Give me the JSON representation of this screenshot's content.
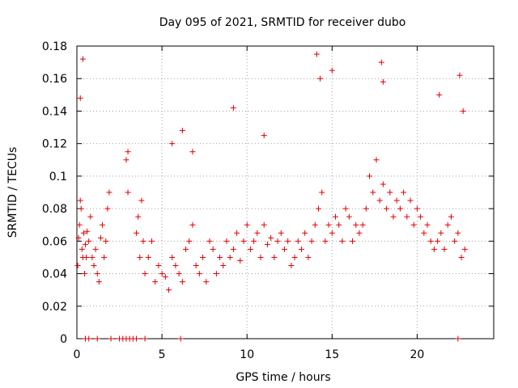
{
  "chart_data": {
    "type": "scatter",
    "title": "Day 095 of 2021, SRMTID for receiver dubo",
    "xlabel": "GPS time / hours",
    "ylabel": "SRMTID / TECUs",
    "xlim": [
      0,
      24.5
    ],
    "ylim": [
      0,
      0.18
    ],
    "xticks": [
      0,
      5,
      10,
      15,
      20
    ],
    "xtick_labels": [
      "0",
      "5",
      "10",
      "15",
      "20"
    ],
    "yticks": [
      0,
      0.02,
      0.04,
      0.06,
      0.08,
      0.1,
      0.12,
      0.14,
      0.16,
      0.18
    ],
    "ytick_labels": [
      "0",
      "0.02",
      "0.04",
      "0.06",
      "0.08",
      "0.1",
      "0.12",
      "0.14",
      "0.16",
      "0.18"
    ],
    "grid": true,
    "series": [
      {
        "name": "SRMTID",
        "marker": "plus",
        "color": "#e00000",
        "x": [
          0.05,
          0.1,
          0.15,
          0.2,
          0.25,
          0.3,
          0.35,
          0.4,
          0.45,
          0.5,
          0.55,
          0.6,
          0.7,
          0.8,
          0.9,
          1.0,
          1.1,
          1.2,
          1.3,
          1.4,
          1.5,
          1.6,
          1.7,
          1.8,
          1.9,
          2.9,
          3.0,
          3.5,
          3.6,
          3.7,
          3.8,
          3.9,
          4.0,
          4.2,
          4.4,
          4.6,
          4.8,
          5.0,
          5.2,
          5.4,
          5.6,
          5.8,
          6.0,
          6.2,
          6.4,
          6.6,
          6.8,
          7.0,
          7.2,
          7.4,
          7.6,
          7.8,
          8.0,
          8.2,
          8.4,
          8.6,
          8.8,
          9.0,
          9.2,
          9.4,
          9.6,
          9.8,
          10.0,
          10.2,
          10.4,
          10.6,
          10.8,
          11.0,
          11.2,
          11.4,
          11.6,
          11.8,
          12.0,
          12.2,
          12.4,
          12.6,
          12.8,
          13.0,
          13.2,
          13.4,
          13.6,
          13.8,
          14.0,
          14.2,
          14.4,
          14.6,
          14.8,
          15.0,
          15.2,
          15.4,
          15.6,
          15.8,
          16.0,
          16.2,
          16.4,
          16.6,
          16.8,
          17.0,
          17.2,
          17.4,
          17.6,
          17.8,
          18.0,
          18.2,
          18.4,
          18.6,
          18.8,
          19.0,
          19.2,
          19.4,
          19.6,
          19.8,
          20.0,
          20.2,
          20.4,
          20.6,
          20.8,
          21.0,
          21.2,
          21.4,
          21.6,
          21.8,
          22.0,
          22.2,
          22.4,
          22.6,
          22.8,
          0.2,
          0.35,
          3.0,
          5.6,
          6.2,
          6.8,
          9.2,
          11.0,
          14.1,
          14.3,
          15.0,
          17.9,
          18.0,
          21.3,
          22.5,
          22.7,
          0.5,
          0.7,
          1.2,
          2.0,
          2.5,
          2.7,
          2.9,
          3.1,
          3.3,
          3.5,
          4.0,
          6.1,
          22.4
        ],
        "values": [
          0.045,
          0.062,
          0.07,
          0.085,
          0.08,
          0.055,
          0.05,
          0.065,
          0.04,
          0.058,
          0.05,
          0.066,
          0.06,
          0.075,
          0.05,
          0.045,
          0.055,
          0.04,
          0.035,
          0.062,
          0.07,
          0.05,
          0.06,
          0.08,
          0.09,
          0.11,
          0.09,
          0.065,
          0.075,
          0.05,
          0.085,
          0.06,
          0.04,
          0.05,
          0.06,
          0.035,
          0.045,
          0.04,
          0.038,
          0.03,
          0.05,
          0.045,
          0.04,
          0.035,
          0.055,
          0.06,
          0.07,
          0.045,
          0.04,
          0.05,
          0.035,
          0.06,
          0.055,
          0.04,
          0.05,
          0.045,
          0.06,
          0.05,
          0.055,
          0.065,
          0.048,
          0.06,
          0.07,
          0.055,
          0.06,
          0.065,
          0.05,
          0.07,
          0.058,
          0.062,
          0.05,
          0.06,
          0.065,
          0.055,
          0.06,
          0.045,
          0.05,
          0.06,
          0.055,
          0.065,
          0.05,
          0.06,
          0.07,
          0.08,
          0.09,
          0.06,
          0.07,
          0.065,
          0.075,
          0.07,
          0.06,
          0.08,
          0.075,
          0.06,
          0.07,
          0.065,
          0.07,
          0.08,
          0.1,
          0.09,
          0.11,
          0.085,
          0.095,
          0.08,
          0.09,
          0.075,
          0.085,
          0.08,
          0.09,
          0.075,
          0.085,
          0.07,
          0.08,
          0.075,
          0.065,
          0.07,
          0.06,
          0.055,
          0.06,
          0.065,
          0.055,
          0.07,
          0.075,
          0.06,
          0.065,
          0.05,
          0.055,
          0.148,
          0.172,
          0.115,
          0.12,
          0.128,
          0.115,
          0.142,
          0.125,
          0.175,
          0.16,
          0.165,
          0.17,
          0.158,
          0.15,
          0.162,
          0.14,
          0.0,
          0.0,
          0.0,
          0.0,
          0.0,
          0.0,
          0.0,
          0.0,
          0.0,
          0.0,
          0.0,
          0.0,
          0.0
        ]
      }
    ]
  }
}
